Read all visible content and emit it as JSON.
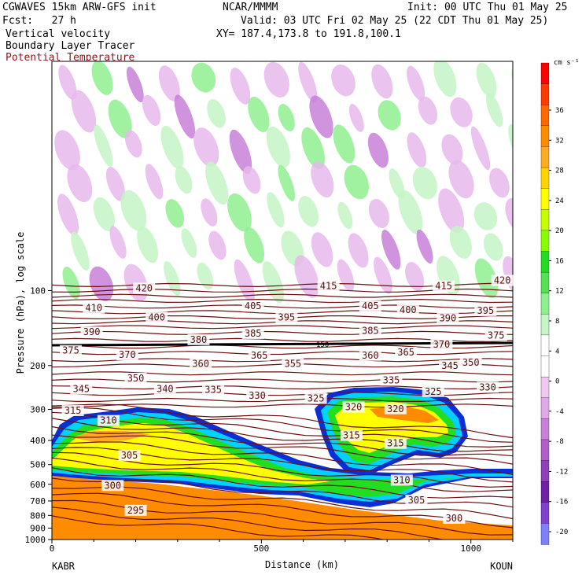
{
  "header": {
    "model": "CGWAVES 15km ARW-GFS init",
    "org": "NCAR/MMMM",
    "init": "Init: 00 UTC Thu 01 May 25",
    "fcst": "Fcst:   27 h",
    "valid": "Valid: 03 UTC Fri 02 May 25 (22 CDT Thu 01 May 25)",
    "field1": "Vertical velocity",
    "field2": "Boundary Layer Tracer",
    "field3": "Potential Temperature",
    "xy": "XY= 187.4,173.8 to 191.8,100.1"
  },
  "colorbar": {
    "unit": "cm s⁻¹",
    "tick_labels": [
      "36",
      "32",
      "28",
      "24",
      "20",
      "16",
      "12",
      "8",
      "4",
      "0",
      "-4",
      "-8",
      "-12",
      "-16",
      "-20"
    ],
    "colors": [
      "#ff0000",
      "#ff3a00",
      "#ff6a00",
      "#ff8c00",
      "#ffaa22",
      "#ffd400",
      "#ffff00",
      "#c8ff00",
      "#88ff00",
      "#22dd22",
      "#55e055",
      "#8ff08f",
      "#c6f5c6",
      "#ffffff",
      "#ffffff",
      "#f0c8f0",
      "#e0a8e8",
      "#c880d8",
      "#b060c8",
      "#9040b8",
      "#7020a8",
      "#8040d0",
      "#8080ff"
    ]
  },
  "colors": {
    "isentrope": "#6b0f0f",
    "tropopause": "#000000"
  },
  "chart_data": {
    "type": "heatmap",
    "title": "",
    "xlabel": "Distance (km)",
    "ylabel": "Pressure (hPa), log scale",
    "x_range": [
      0,
      1100
    ],
    "y_range": [
      1000,
      12
    ],
    "y_scale": "log",
    "x_ticks": [
      0,
      500,
      1000
    ],
    "x_tick_labels": [
      "0",
      "500",
      "1000"
    ],
    "y_ticks": [
      100,
      200,
      300,
      400,
      500,
      600,
      700,
      800,
      900,
      1000
    ],
    "y_tick_labels": [
      "100",
      "200",
      "300",
      "400",
      "500",
      "600",
      "700",
      "800",
      "900",
      "1000"
    ],
    "left_station": "KABR",
    "right_station": "KOUN",
    "tropopause_label": "150",
    "isentropes": [
      {
        "label": "420",
        "x": 220,
        "p": 100
      },
      {
        "label": "415",
        "x": 660,
        "p": 98
      },
      {
        "label": "415",
        "x": 935,
        "p": 98
      },
      {
        "label": "420",
        "x": 1075,
        "p": 93
      },
      {
        "label": "410",
        "x": 100,
        "p": 120
      },
      {
        "label": "405",
        "x": 480,
        "p": 118
      },
      {
        "label": "405",
        "x": 760,
        "p": 118
      },
      {
        "label": "400",
        "x": 250,
        "p": 131
      },
      {
        "label": "400",
        "x": 850,
        "p": 122
      },
      {
        "label": "395",
        "x": 560,
        "p": 131
      },
      {
        "label": "395",
        "x": 1035,
        "p": 123
      },
      {
        "label": "390",
        "x": 95,
        "p": 150
      },
      {
        "label": "390",
        "x": 945,
        "p": 132
      },
      {
        "label": "385",
        "x": 480,
        "p": 152
      },
      {
        "label": "385",
        "x": 760,
        "p": 148
      },
      {
        "label": "380",
        "x": 350,
        "p": 161
      },
      {
        "label": "375",
        "x": 45,
        "p": 178
      },
      {
        "label": "375",
        "x": 1060,
        "p": 155
      },
      {
        "label": "370",
        "x": 180,
        "p": 185
      },
      {
        "label": "370",
        "x": 930,
        "p": 168
      },
      {
        "label": "365",
        "x": 495,
        "p": 186
      },
      {
        "label": "365",
        "x": 845,
        "p": 181
      },
      {
        "label": "360",
        "x": 355,
        "p": 201
      },
      {
        "label": "360",
        "x": 760,
        "p": 186
      },
      {
        "label": "355",
        "x": 575,
        "p": 201
      },
      {
        "label": "350",
        "x": 200,
        "p": 230
      },
      {
        "label": "350",
        "x": 1000,
        "p": 199
      },
      {
        "label": "345",
        "x": 70,
        "p": 254
      },
      {
        "label": "345",
        "x": 950,
        "p": 205
      },
      {
        "label": "340",
        "x": 270,
        "p": 254
      },
      {
        "label": "335",
        "x": 385,
        "p": 256
      },
      {
        "label": "335",
        "x": 810,
        "p": 234
      },
      {
        "label": "330",
        "x": 490,
        "p": 270
      },
      {
        "label": "330",
        "x": 1040,
        "p": 250
      },
      {
        "label": "325",
        "x": 630,
        "p": 277
      },
      {
        "label": "325",
        "x": 910,
        "p": 260
      },
      {
        "label": "320",
        "x": 720,
        "p": 300
      },
      {
        "label": "320",
        "x": 820,
        "p": 305
      },
      {
        "label": "315",
        "x": 50,
        "p": 310
      },
      {
        "label": "315",
        "x": 715,
        "p": 390
      },
      {
        "label": "315",
        "x": 820,
        "p": 420
      },
      {
        "label": "310",
        "x": 135,
        "p": 340
      },
      {
        "label": "310",
        "x": 835,
        "p": 590
      },
      {
        "label": "305",
        "x": 185,
        "p": 470
      },
      {
        "label": "305",
        "x": 870,
        "p": 710
      },
      {
        "label": "300",
        "x": 145,
        "p": 620
      },
      {
        "label": "300",
        "x": 960,
        "p": 840
      },
      {
        "label": "295",
        "x": 200,
        "p": 780
      }
    ]
  }
}
